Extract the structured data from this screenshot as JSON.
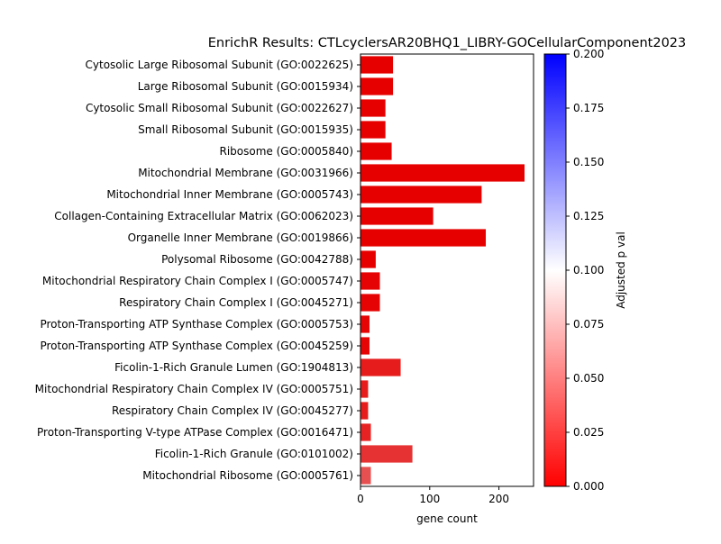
{
  "chart_data": {
    "type": "bar",
    "orientation": "horizontal",
    "title": "EnrichR Results: CTLcyclersAR20BHQ1_LIBRY-GOCellularComponent2023",
    "xlabel": "gene count",
    "ylabel": "",
    "xlim": [
      0,
      250
    ],
    "xticks": [
      0,
      100,
      200
    ],
    "categories": [
      "Cytosolic Large Ribosomal Subunit (GO:0022625)",
      "Large Ribosomal Subunit (GO:0015934)",
      "Cytosolic Small Ribosomal Subunit (GO:0022627)",
      "Small Ribosomal Subunit (GO:0015935)",
      "Ribosome (GO:0005840)",
      "Mitochondrial Membrane (GO:0031966)",
      "Mitochondrial Inner Membrane (GO:0005743)",
      "Collagen-Containing Extracellular Matrix (GO:0062023)",
      "Organelle Inner Membrane (GO:0019866)",
      "Polysomal Ribosome (GO:0042788)",
      "Mitochondrial Respiratory Chain Complex I (GO:0005747)",
      "Respiratory Chain Complex I (GO:0045271)",
      "Proton-Transporting ATP Synthase Complex (GO:0005753)",
      "Proton-Transporting ATP Synthase Complex (GO:0045259)",
      "Ficolin-1-Rich Granule Lumen (GO:1904813)",
      "Mitochondrial Respiratory Chain Complex IV (GO:0005751)",
      "Respiratory Chain Complex IV (GO:0045277)",
      "Proton-Transporting V-type ATPase Complex (GO:0016471)",
      "Ficolin-1-Rich Granule (GO:0101002)",
      "Mitochondrial Ribosome (GO:0005761)"
    ],
    "values": [
      47,
      47,
      36,
      36,
      45,
      237,
      175,
      105,
      181,
      22,
      28,
      28,
      13,
      13,
      58,
      11,
      11,
      15,
      75,
      15
    ],
    "adjusted_p_val": [
      0.0,
      0.0,
      0.0,
      0.0,
      0.0,
      0.0,
      0.0,
      0.0,
      0.0,
      0.0,
      0.001,
      0.001,
      0.002,
      0.002,
      0.012,
      0.012,
      0.012,
      0.015,
      0.022,
      0.035
    ],
    "colorbar": {
      "label": "Adjusted p val",
      "range": [
        0.0,
        0.2
      ],
      "ticks": [
        "0.000",
        "0.025",
        "0.050",
        "0.075",
        "0.100",
        "0.125",
        "0.150",
        "0.175",
        "0.200"
      ],
      "colors": [
        "#ff0000",
        "#ffffff",
        "#0000ff"
      ]
    },
    "grid": false,
    "legend": "none"
  }
}
